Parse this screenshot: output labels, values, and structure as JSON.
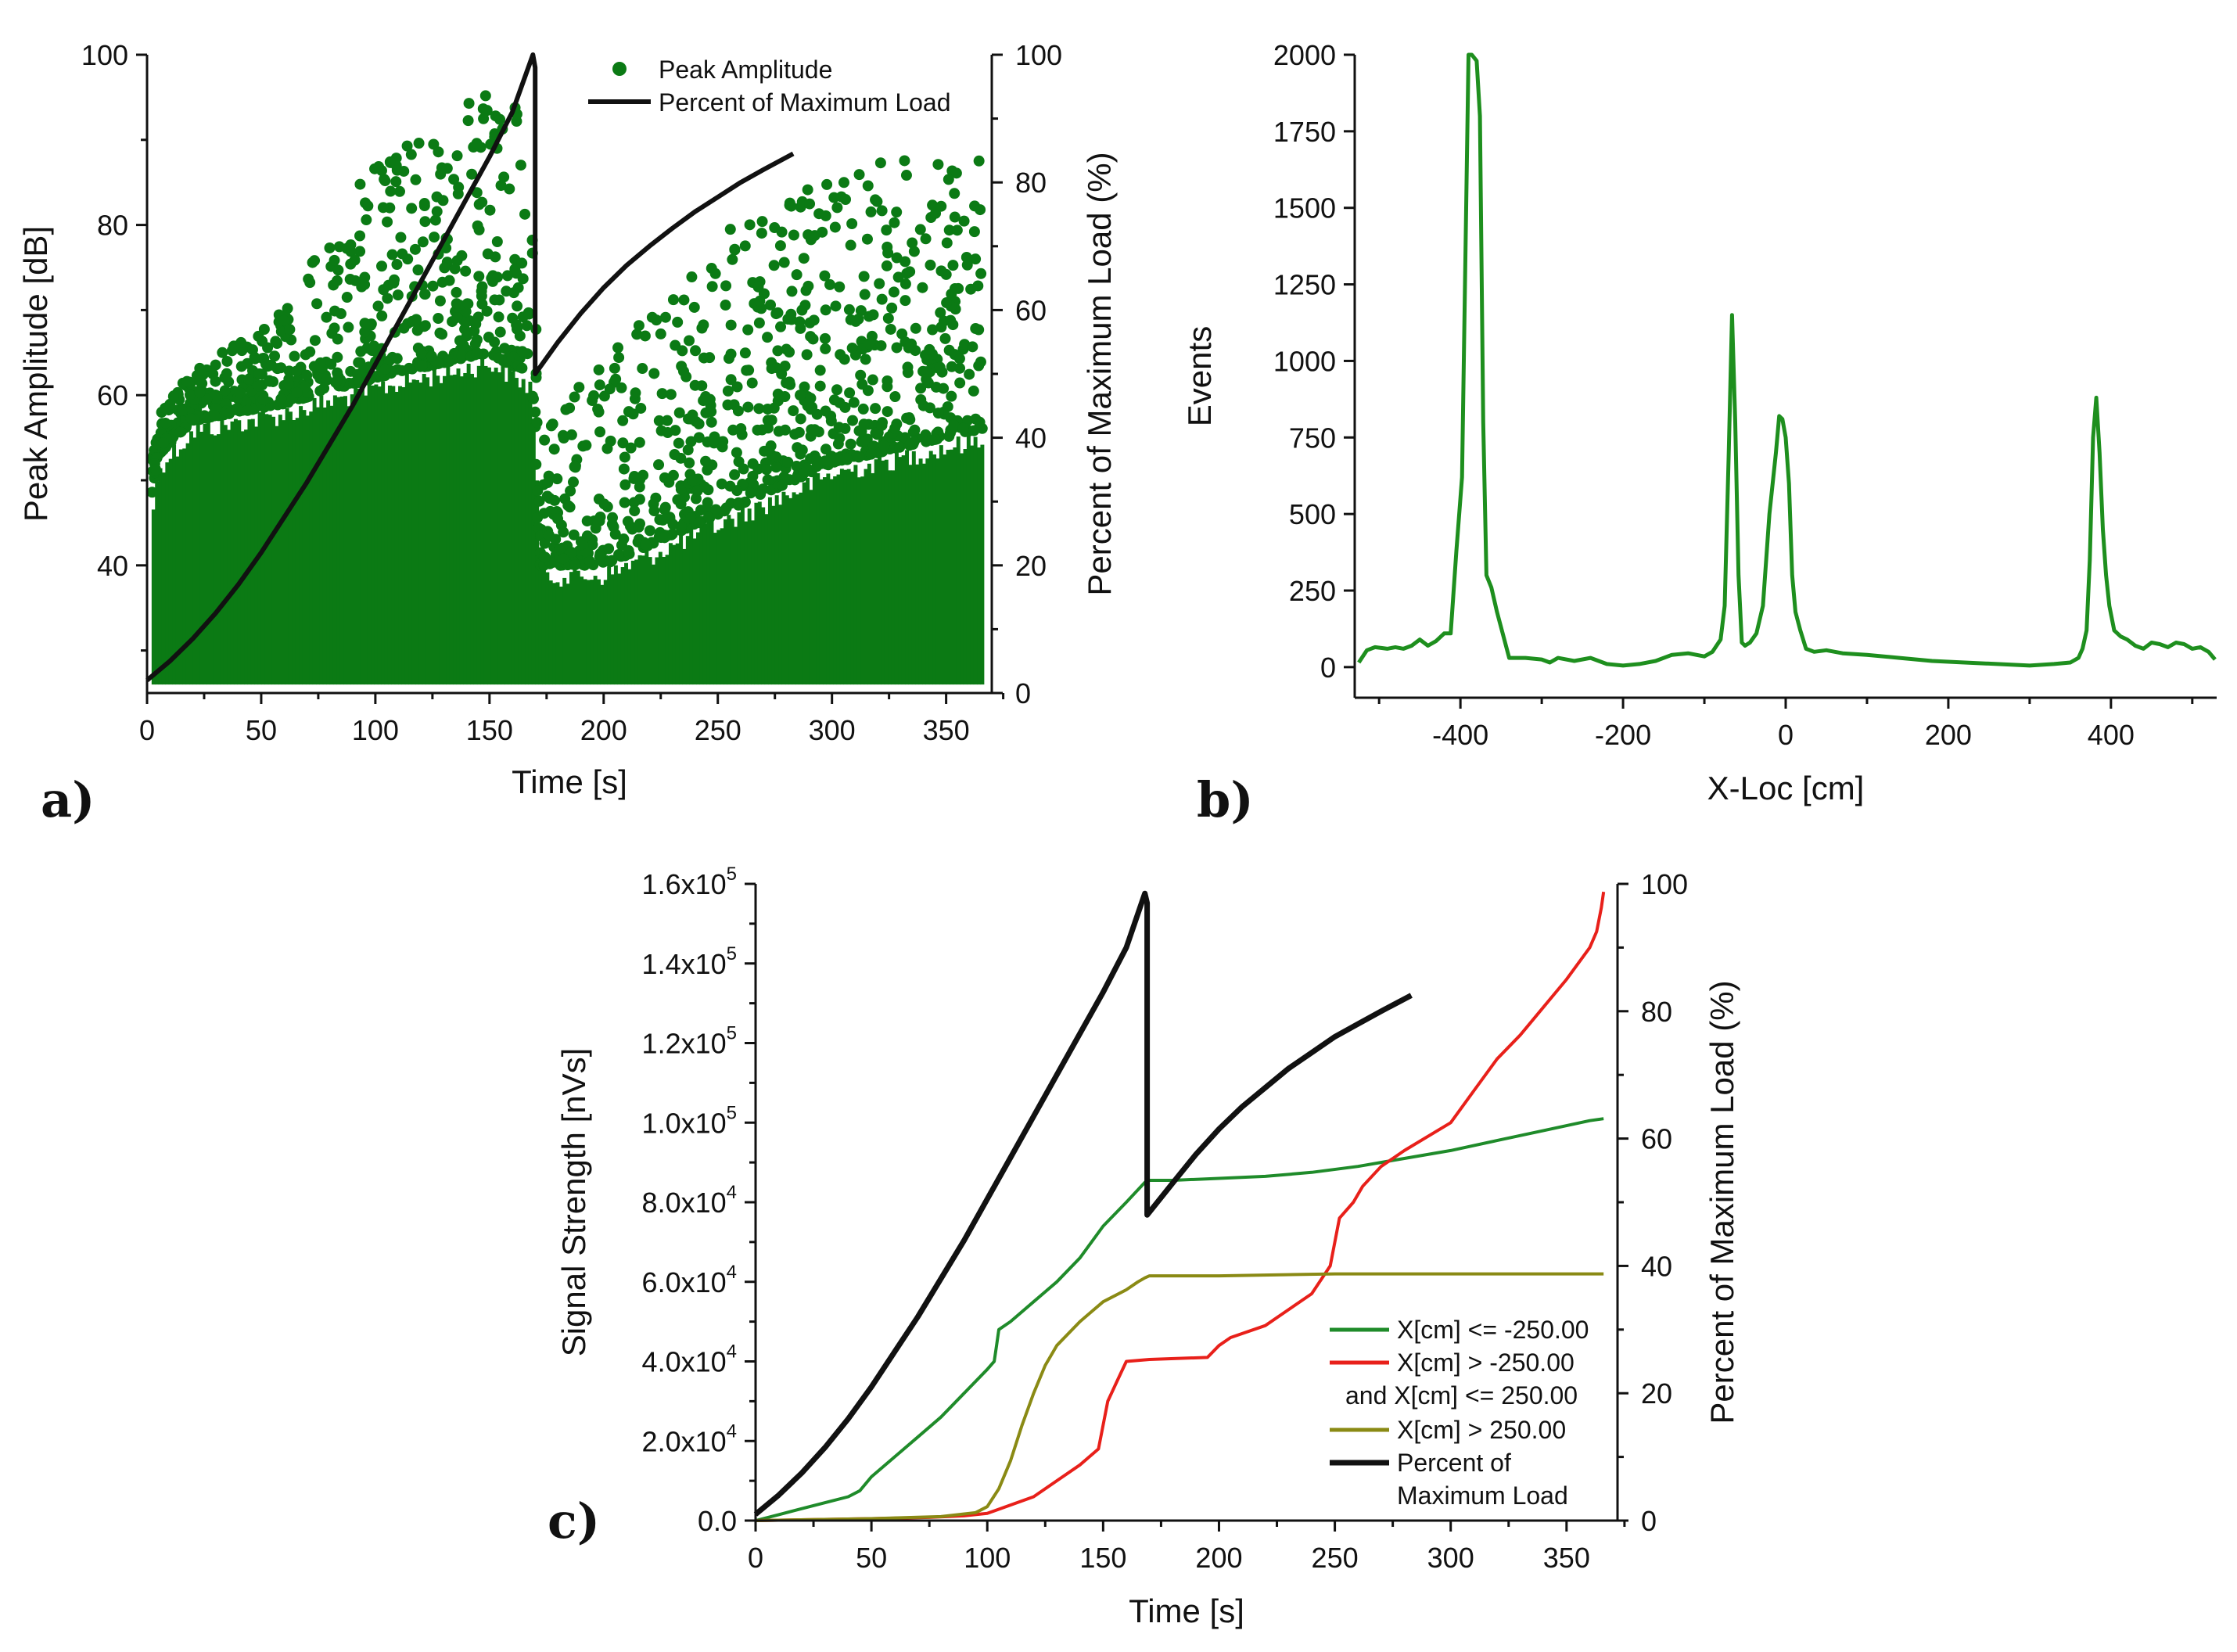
{
  "chart_data": [
    {
      "panel": "a)",
      "type": "scatter",
      "xlabel": "Time [s]",
      "ylabel": "Peak Amplitude [dB]",
      "y2label": "Percent of Maximum Load (%)",
      "xlim": [
        0,
        370
      ],
      "ylim": [
        25,
        100
      ],
      "y2lim": [
        0,
        100
      ],
      "xticks": [
        0,
        50,
        100,
        150,
        200,
        250,
        300,
        350
      ],
      "yticks": [
        40,
        60,
        80,
        100
      ],
      "y2ticks": [
        0,
        20,
        40,
        60,
        80,
        100
      ],
      "scatter_color": "#0b7a14",
      "legend": [
        {
          "label": "Peak Amplitude",
          "kind": "marker",
          "color": "#0b7a14"
        },
        {
          "label": "Percent of Maximum Load",
          "kind": "line",
          "color": "#111111"
        }
      ],
      "scatter_envelope": [
        {
          "t": 0,
          "dense_max": 45,
          "sparse_max": 48
        },
        {
          "t": 5,
          "dense_max": 53,
          "sparse_max": 58
        },
        {
          "t": 20,
          "dense_max": 57,
          "sparse_max": 63
        },
        {
          "t": 60,
          "dense_max": 59,
          "sparse_max": 70
        },
        {
          "t": 100,
          "dense_max": 62,
          "sparse_max": 88
        },
        {
          "t": 150,
          "dense_max": 65,
          "sparse_max": 97
        },
        {
          "t": 168,
          "dense_max": 62,
          "sparse_max": 95
        },
        {
          "t": 172,
          "dense_max": 40,
          "sparse_max": 55
        },
        {
          "t": 200,
          "dense_max": 40,
          "sparse_max": 65
        },
        {
          "t": 250,
          "dense_max": 46,
          "sparse_max": 80
        },
        {
          "t": 300,
          "dense_max": 52,
          "sparse_max": 86
        },
        {
          "t": 365,
          "dense_max": 56,
          "sparse_max": 90
        }
      ],
      "load_curve": {
        "series_name": "Percent of Maximum Load",
        "x": [
          0,
          10,
          20,
          30,
          40,
          50,
          60,
          70,
          80,
          90,
          100,
          110,
          120,
          130,
          140,
          150,
          160,
          169,
          170,
          170,
          180,
          190,
          200,
          210,
          220,
          230,
          240,
          250,
          260,
          270,
          283
        ],
        "y": [
          2,
          5,
          8.5,
          12.5,
          17,
          22,
          27.5,
          33,
          39,
          45,
          51.5,
          58,
          64.5,
          71,
          77.5,
          84,
          91,
          100,
          98,
          50,
          55,
          59.5,
          63.5,
          67,
          70,
          72.8,
          75.4,
          77.7,
          80,
          82,
          84.5
        ]
      }
    },
    {
      "panel": "b)",
      "type": "line",
      "xlabel": "X-Loc [cm]",
      "ylabel": "Events",
      "xlim": [
        -530,
        530
      ],
      "ylim": [
        -100,
        2000
      ],
      "xticks": [
        -400,
        -200,
        0,
        200,
        400
      ],
      "yticks": [
        0,
        250,
        500,
        750,
        1000,
        1250,
        1500,
        1750,
        2000
      ],
      "color": "#1e8f1e",
      "series": [
        {
          "name": "Events",
          "x": [
            -525,
            -515,
            -505,
            -490,
            -480,
            -470,
            -460,
            -450,
            -440,
            -430,
            -420,
            -412,
            -405,
            -398,
            -390,
            -386,
            -380,
            -376,
            -372,
            -368,
            -362,
            -355,
            -340,
            -320,
            -300,
            -290,
            -280,
            -260,
            -240,
            -220,
            -200,
            -180,
            -160,
            -140,
            -120,
            -100,
            -90,
            -80,
            -75,
            -70,
            -66,
            -62,
            -58,
            -54,
            -50,
            -44,
            -36,
            -28,
            -20,
            -12,
            -8,
            -4,
            0,
            4,
            8,
            12,
            18,
            25,
            35,
            50,
            70,
            100,
            140,
            180,
            220,
            260,
            300,
            330,
            350,
            360,
            365,
            370,
            374,
            378,
            382,
            386,
            390,
            394,
            398,
            404,
            412,
            420,
            430,
            440,
            450,
            460,
            470,
            480,
            490,
            500,
            510,
            520,
            528
          ],
          "y": [
            15,
            55,
            65,
            60,
            65,
            60,
            70,
            90,
            70,
            85,
            110,
            110,
            380,
            620,
            2000,
            2000,
            1980,
            1800,
            800,
            300,
            260,
            180,
            30,
            30,
            25,
            15,
            30,
            20,
            30,
            10,
            5,
            10,
            20,
            40,
            45,
            35,
            50,
            90,
            200,
            700,
            1150,
            800,
            300,
            80,
            70,
            80,
            110,
            200,
            500,
            700,
            820,
            810,
            750,
            600,
            300,
            180,
            120,
            60,
            50,
            55,
            45,
            40,
            30,
            20,
            15,
            10,
            5,
            10,
            15,
            30,
            60,
            120,
            350,
            750,
            880,
            700,
            450,
            300,
            200,
            120,
            100,
            90,
            70,
            60,
            80,
            75,
            65,
            80,
            75,
            60,
            65,
            50,
            25
          ]
        }
      ]
    },
    {
      "panel": "c)",
      "type": "line",
      "xlabel": "Time [s]",
      "ylabel": "Signal Strength [nVs]",
      "y2label": "Percent of Maximum Load (%)",
      "xlim": [
        0,
        372
      ],
      "ylim": [
        0,
        160000
      ],
      "y2lim": [
        0,
        100
      ],
      "xticks": [
        0,
        50,
        100,
        150,
        200,
        250,
        300,
        350
      ],
      "ytick_labels": [
        "0.0",
        "2.0x10",
        "4.0x10",
        "6.0x10",
        "8.0x10",
        "1.0x10",
        "1.2x10",
        "1.4x10",
        "1.6x10"
      ],
      "ytick_exponents": [
        "",
        "4",
        "4",
        "4",
        "4",
        "5",
        "5",
        "5",
        "5"
      ],
      "ytick_values": [
        0,
        20000,
        40000,
        60000,
        80000,
        100000,
        120000,
        140000,
        160000
      ],
      "y2ticks": [
        0,
        20,
        40,
        60,
        80,
        100
      ],
      "legend": [
        {
          "label": "X[cm] <= -250.00",
          "color": "#1f8b2a"
        },
        {
          "label": "X[cm] > -250.00",
          "label2": "and X[cm] <= 250.00",
          "color": "#e8201a"
        },
        {
          "label": "X[cm] > 250.00",
          "color": "#8a8a14"
        },
        {
          "label": "Percent of",
          "label2": "Maximum Load",
          "color": "#111111"
        }
      ],
      "series": [
        {
          "name": "X[cm] <= -250.00",
          "color": "#1f8b2a",
          "axis": "left",
          "x": [
            0,
            10,
            20,
            30,
            40,
            45,
            50,
            60,
            70,
            80,
            90,
            100,
            103,
            104,
            105,
            110,
            120,
            130,
            140,
            150,
            160,
            168,
            170,
            180,
            200,
            220,
            240,
            260,
            280,
            300,
            320,
            340,
            360,
            366
          ],
          "y": [
            0,
            1500,
            3000,
            4500,
            6000,
            7500,
            11000,
            16000,
            21000,
            26000,
            32000,
            38000,
            40000,
            44000,
            48000,
            50000,
            55000,
            60000,
            66000,
            74000,
            80000,
            85000,
            85500,
            85500,
            86000,
            86500,
            87500,
            89000,
            91000,
            93000,
            95500,
            98000,
            100500,
            101000
          ]
        },
        {
          "name": "X[cm] > -250.00 and X[cm] <= 250.00",
          "color": "#e8201a",
          "axis": "left",
          "x": [
            0,
            50,
            75,
            90,
            100,
            120,
            130,
            140,
            148,
            152,
            156,
            160,
            170,
            195,
            200,
            205,
            220,
            230,
            240,
            248,
            252,
            258,
            262,
            270,
            280,
            300,
            310,
            320,
            330,
            340,
            350,
            360,
            363,
            365,
            366
          ],
          "y": [
            0,
            500,
            800,
            1200,
            1800,
            6000,
            10000,
            14000,
            18000,
            30000,
            35000,
            40000,
            40500,
            41000,
            44000,
            46000,
            49000,
            53000,
            57000,
            64000,
            76000,
            80000,
            84000,
            89000,
            93000,
            100000,
            108000,
            116000,
            122000,
            129000,
            136000,
            144000,
            148000,
            154000,
            158000
          ]
        },
        {
          "name": "X[cm] > 250.00",
          "color": "#8a8a14",
          "axis": "left",
          "x": [
            0,
            50,
            80,
            95,
            100,
            105,
            110,
            115,
            120,
            125,
            130,
            140,
            150,
            160,
            165,
            168,
            170,
            200,
            250,
            300,
            366
          ],
          "y": [
            0,
            500,
            1000,
            2000,
            3500,
            8000,
            15000,
            24000,
            32000,
            39000,
            44000,
            50000,
            55000,
            58000,
            60000,
            61000,
            61500,
            61500,
            62000,
            62000,
            62000
          ]
        },
        {
          "name": "Percent of Maximum Load",
          "color": "#111111",
          "axis": "right",
          "x": [
            0,
            10,
            20,
            30,
            40,
            50,
            60,
            70,
            80,
            90,
            100,
            110,
            120,
            130,
            140,
            150,
            160,
            168,
            169,
            169,
            180,
            190,
            200,
            210,
            220,
            230,
            240,
            250,
            260,
            270,
            283
          ],
          "y": [
            1,
            4,
            7.5,
            11.5,
            16,
            21,
            26.5,
            32,
            38,
            44,
            50.5,
            57,
            63.5,
            70,
            76.5,
            83,
            90,
            98.5,
            97,
            48,
            53,
            57.5,
            61.5,
            65,
            68,
            71,
            73.5,
            76,
            78,
            80,
            82.5
          ]
        }
      ]
    }
  ]
}
